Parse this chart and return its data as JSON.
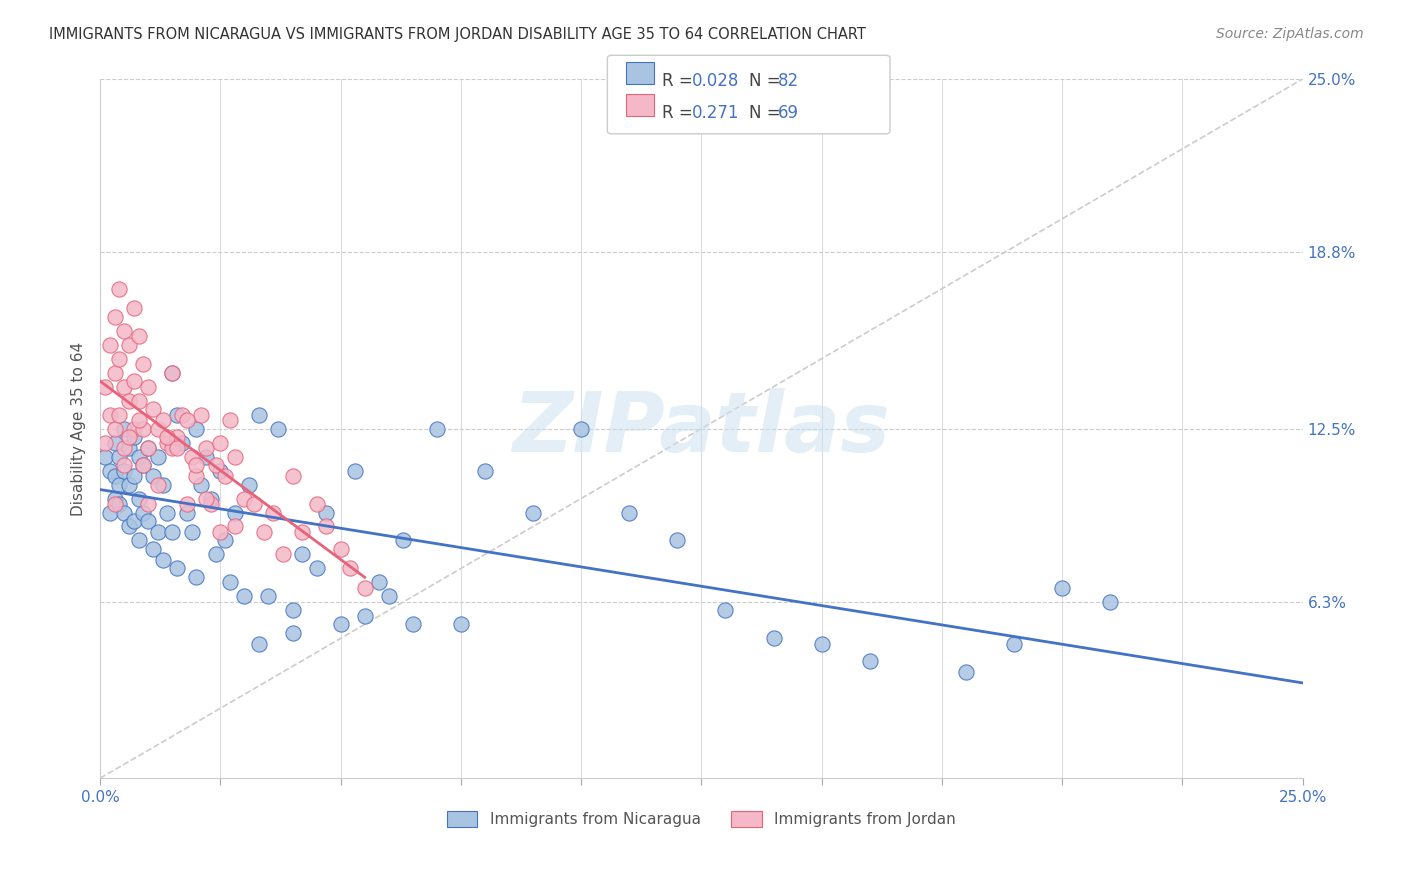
{
  "title": "IMMIGRANTS FROM NICARAGUA VS IMMIGRANTS FROM JORDAN DISABILITY AGE 35 TO 64 CORRELATION CHART",
  "source": "Source: ZipAtlas.com",
  "ylabel": "Disability Age 35 to 64",
  "xlim": [
    0.0,
    0.25
  ],
  "ylim": [
    0.0,
    0.25
  ],
  "xtick_vals": [
    0.0,
    0.025,
    0.05,
    0.075,
    0.1,
    0.125,
    0.15,
    0.175,
    0.2,
    0.225,
    0.25
  ],
  "xtick_labels_show": [
    "0.0%",
    "",
    "",
    "",
    "",
    "",
    "",
    "",
    "",
    "",
    "25.0%"
  ],
  "ytick_vals": [
    0.063,
    0.125,
    0.188,
    0.25
  ],
  "ytick_labels": [
    "6.3%",
    "12.5%",
    "18.8%",
    "25.0%"
  ],
  "legend_label1": "Immigrants from Nicaragua",
  "legend_label2": "Immigrants from Jordan",
  "R1": "0.028",
  "N1": "82",
  "R2": "0.271",
  "N2": "69",
  "color_nicaragua": "#a8c4e0",
  "color_jordan": "#f4b8c8",
  "line_color_nicaragua": "#4472c4",
  "line_color_jordan": "#e8637a",
  "diag_color": "#cccccc",
  "background_color": "#ffffff",
  "watermark": "ZIPatlas",
  "nicaragua_x": [
    0.001,
    0.002,
    0.002,
    0.003,
    0.003,
    0.003,
    0.004,
    0.004,
    0.004,
    0.005,
    0.005,
    0.005,
    0.006,
    0.006,
    0.006,
    0.007,
    0.007,
    0.007,
    0.008,
    0.008,
    0.008,
    0.009,
    0.009,
    0.01,
    0.01,
    0.011,
    0.011,
    0.012,
    0.012,
    0.013,
    0.013,
    0.014,
    0.015,
    0.015,
    0.016,
    0.016,
    0.017,
    0.018,
    0.019,
    0.02,
    0.02,
    0.021,
    0.022,
    0.023,
    0.024,
    0.025,
    0.026,
    0.027,
    0.028,
    0.03,
    0.031,
    0.033,
    0.035,
    0.037,
    0.04,
    0.042,
    0.045,
    0.047,
    0.05,
    0.053,
    0.055,
    0.058,
    0.06,
    0.063,
    0.065,
    0.07,
    0.075,
    0.08,
    0.09,
    0.1,
    0.11,
    0.12,
    0.13,
    0.14,
    0.15,
    0.16,
    0.18,
    0.19,
    0.2,
    0.21,
    0.033,
    0.04
  ],
  "nicaragua_y": [
    0.115,
    0.095,
    0.11,
    0.12,
    0.1,
    0.108,
    0.115,
    0.105,
    0.098,
    0.125,
    0.11,
    0.095,
    0.118,
    0.105,
    0.09,
    0.122,
    0.108,
    0.092,
    0.115,
    0.1,
    0.085,
    0.112,
    0.095,
    0.118,
    0.092,
    0.108,
    0.082,
    0.115,
    0.088,
    0.105,
    0.078,
    0.095,
    0.145,
    0.088,
    0.13,
    0.075,
    0.12,
    0.095,
    0.088,
    0.125,
    0.072,
    0.105,
    0.115,
    0.1,
    0.08,
    0.11,
    0.085,
    0.07,
    0.095,
    0.065,
    0.105,
    0.13,
    0.065,
    0.125,
    0.06,
    0.08,
    0.075,
    0.095,
    0.055,
    0.11,
    0.058,
    0.07,
    0.065,
    0.085,
    0.055,
    0.125,
    0.055,
    0.11,
    0.095,
    0.125,
    0.095,
    0.085,
    0.06,
    0.05,
    0.048,
    0.042,
    0.038,
    0.048,
    0.068,
    0.063,
    0.048,
    0.052
  ],
  "jordan_x": [
    0.001,
    0.001,
    0.002,
    0.002,
    0.003,
    0.003,
    0.003,
    0.004,
    0.004,
    0.004,
    0.005,
    0.005,
    0.005,
    0.006,
    0.006,
    0.007,
    0.007,
    0.007,
    0.008,
    0.008,
    0.009,
    0.009,
    0.01,
    0.01,
    0.011,
    0.012,
    0.013,
    0.014,
    0.015,
    0.015,
    0.016,
    0.017,
    0.018,
    0.019,
    0.02,
    0.021,
    0.022,
    0.023,
    0.024,
    0.025,
    0.026,
    0.027,
    0.028,
    0.03,
    0.032,
    0.034,
    0.036,
    0.038,
    0.04,
    0.042,
    0.045,
    0.047,
    0.05,
    0.052,
    0.055,
    0.003,
    0.005,
    0.006,
    0.008,
    0.009,
    0.01,
    0.012,
    0.014,
    0.016,
    0.018,
    0.02,
    0.022,
    0.025,
    0.028
  ],
  "jordan_y": [
    0.14,
    0.12,
    0.155,
    0.13,
    0.165,
    0.145,
    0.125,
    0.175,
    0.15,
    0.13,
    0.16,
    0.14,
    0.118,
    0.155,
    0.135,
    0.168,
    0.142,
    0.125,
    0.158,
    0.135,
    0.148,
    0.125,
    0.14,
    0.118,
    0.132,
    0.125,
    0.128,
    0.12,
    0.118,
    0.145,
    0.122,
    0.13,
    0.098,
    0.115,
    0.108,
    0.13,
    0.118,
    0.098,
    0.112,
    0.12,
    0.108,
    0.128,
    0.09,
    0.1,
    0.098,
    0.088,
    0.095,
    0.08,
    0.108,
    0.088,
    0.098,
    0.09,
    0.082,
    0.075,
    0.068,
    0.098,
    0.112,
    0.122,
    0.128,
    0.112,
    0.098,
    0.105,
    0.122,
    0.118,
    0.128,
    0.112,
    0.1,
    0.088,
    0.115
  ]
}
